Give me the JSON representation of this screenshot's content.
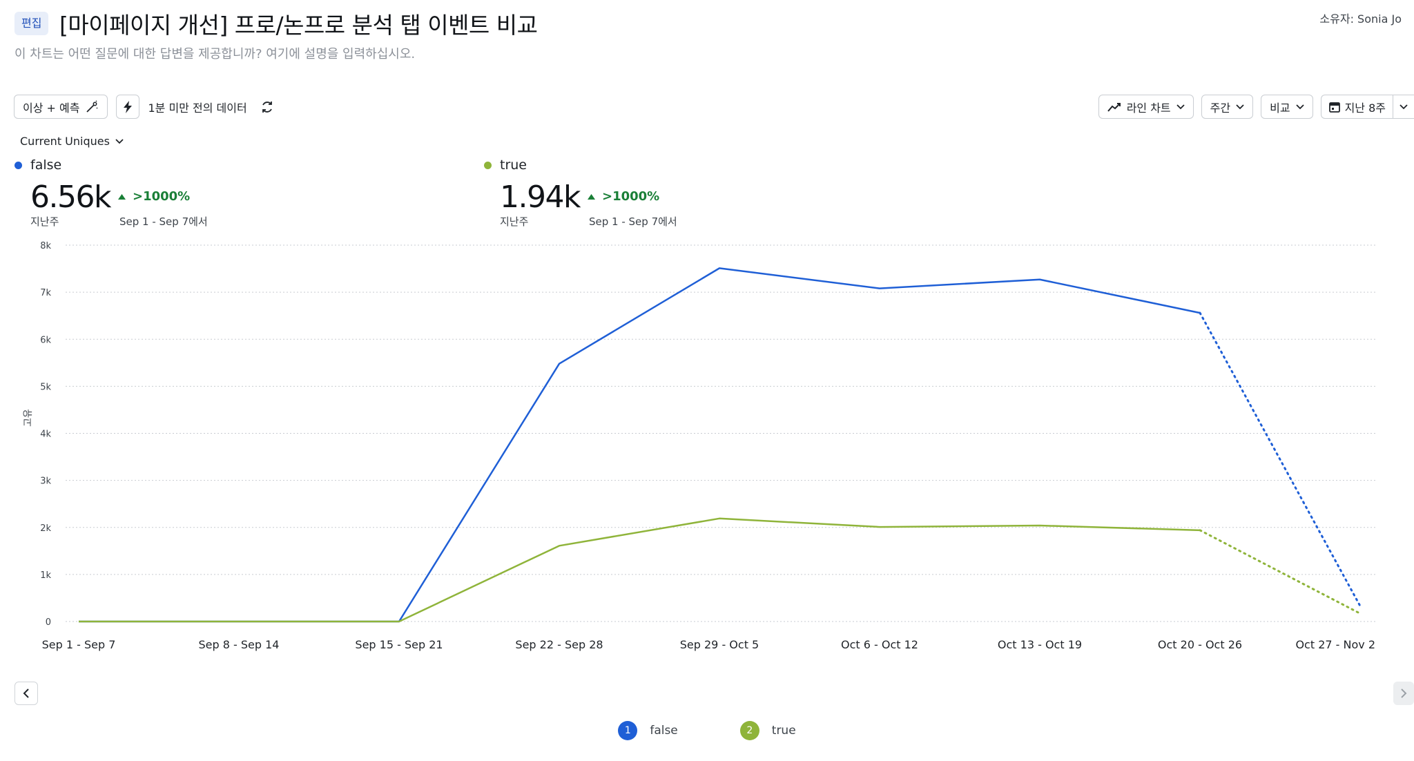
{
  "header": {
    "edit_label": "편집",
    "title": "[마이페이지 개선] 프로/논프로 분석 탭 이벤트 비교",
    "owner": "소유자: Sonia Jo",
    "subtitle": "이 차트는 어떤 질문에 대한 답변을 제공합니까? 여기에 설명을 입력하십시오."
  },
  "toolbar": {
    "anomaly_label": "이상 + 예측",
    "freshness_label": "1분 미만 전의 데이터",
    "chart_type_label": "라인 차트",
    "interval_label": "주간",
    "compare_label": "비교",
    "range_label": "지난 8주"
  },
  "metric": {
    "label": "Current Uniques"
  },
  "summary": [
    {
      "name": "false",
      "value": "6.56k",
      "period": "지난주",
      "delta": ">1000%",
      "delta_period": "Sep 1 - Sep 7에서",
      "color": "#1f5fd6"
    },
    {
      "name": "true",
      "value": "1.94k",
      "period": "지난주",
      "delta": ">1000%",
      "delta_period": "Sep 1 - Sep 7에서",
      "color": "#8fb43a"
    }
  ],
  "legend": [
    {
      "num": "1",
      "name": "false",
      "color": "#1f5fd6"
    },
    {
      "num": "2",
      "name": "true",
      "color": "#8fb43a"
    }
  ],
  "chart_data": {
    "type": "line",
    "title": "",
    "xlabel": "",
    "ylabel": "고유",
    "categories": [
      "Sep 1 - Sep 7",
      "Sep 8 - Sep 14",
      "Sep 15 - Sep 21",
      "Sep 22 - Sep 28",
      "Sep 29 - Oct 5",
      "Oct 6 - Oct 12",
      "Oct 13 - Oct 19",
      "Oct 20 - Oct 26",
      "Oct 27 - Nov 2"
    ],
    "ylim": [
      0,
      8000
    ],
    "yticks": [
      0,
      1000,
      2000,
      3000,
      4000,
      5000,
      6000,
      7000,
      8000
    ],
    "ytick_labels": [
      "0",
      "1k",
      "2k",
      "3k",
      "4k",
      "5k",
      "6k",
      "7k",
      "8k"
    ],
    "grid": true,
    "incomplete_from_index": 7,
    "series": [
      {
        "name": "false",
        "color": "#1f5fd6",
        "values": [
          0,
          0,
          0,
          5480,
          7510,
          7080,
          7270,
          6560,
          330
        ]
      },
      {
        "name": "true",
        "color": "#8fb43a",
        "values": [
          0,
          0,
          0,
          1610,
          2190,
          2010,
          2040,
          1940,
          170
        ]
      }
    ]
  }
}
